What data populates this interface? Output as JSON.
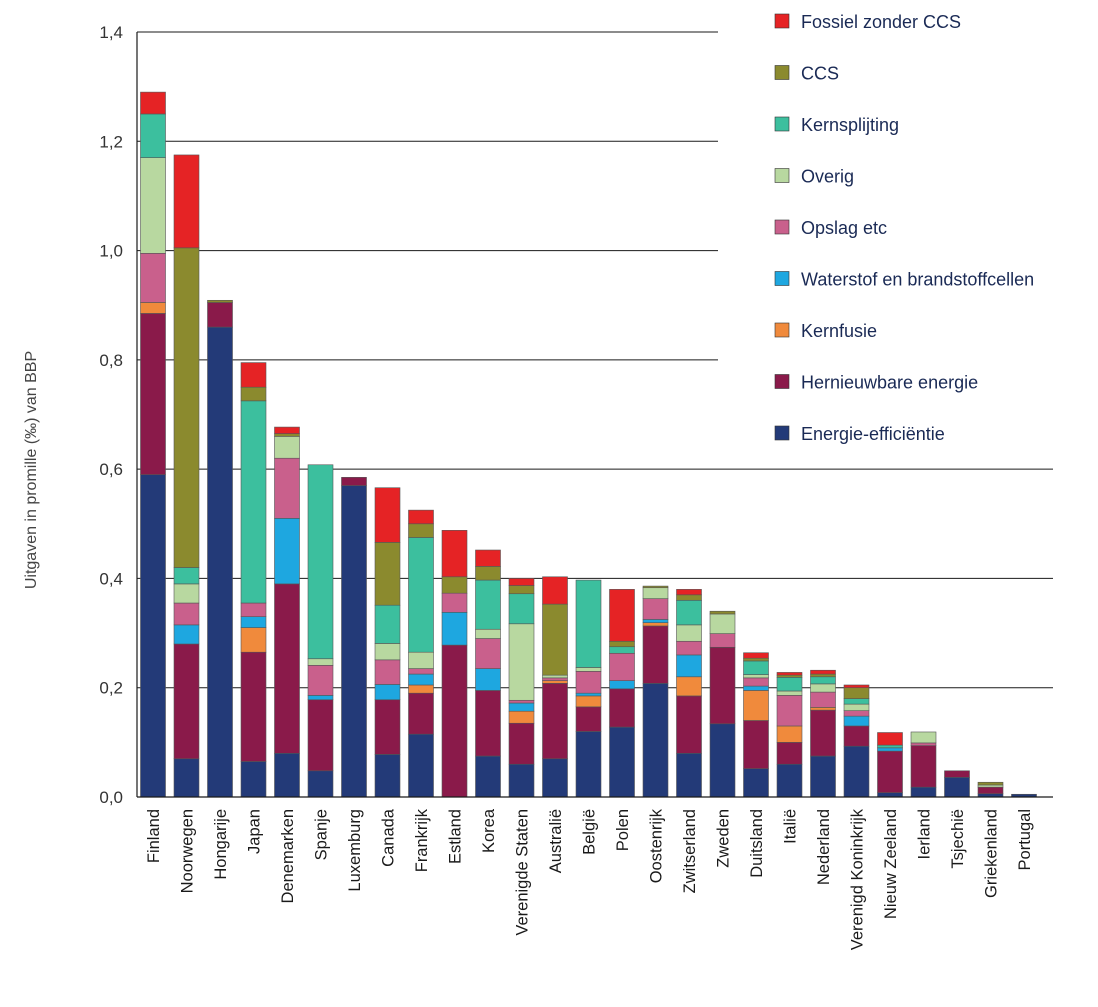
{
  "chart_data": {
    "type": "bar",
    "stacked": true,
    "ylabel": "Uitgaven in promille (‰) van BBP",
    "ylim": [
      0,
      1.4
    ],
    "yticks": [
      "0,0",
      "0,2",
      "0,4",
      "0,6",
      "0,8",
      "1,0",
      "1,2",
      "1,4"
    ],
    "ytick_values": [
      0,
      0.2,
      0.4,
      0.6,
      0.8,
      1.0,
      1.2,
      1.4
    ],
    "grid": "horizontal",
    "legend_position": "top-right",
    "categories": [
      "Finland",
      "Noorwegen",
      "Hongarije",
      "Japan",
      "Denemarken",
      "Spanje",
      "Luxemburg",
      "Canada",
      "Frankrijk",
      "Estland",
      "Korea",
      "Verenigde Staten",
      "Australië",
      "België",
      "Polen",
      "Oostenrijk",
      "Zwitserland",
      "Zweden",
      "Duitsland",
      "Italië",
      "Nederland",
      "Verenigd Koninkrijk",
      "Nieuw Zeeland",
      "Ierland",
      "Tsjechië",
      "Griekenland",
      "Portugal"
    ],
    "series": [
      {
        "name": "Energie-efficiëntie",
        "color": "#233a78",
        "values": [
          0.59,
          0.07,
          0.86,
          0.065,
          0.08,
          0.048,
          0.57,
          0.078,
          0.115,
          0.0,
          0.075,
          0.06,
          0.07,
          0.12,
          0.128,
          0.208,
          0.08,
          0.134,
          0.052,
          0.06,
          0.075,
          0.093,
          0.008,
          0.018,
          0.036,
          0.006,
          0.005
        ]
      },
      {
        "name": "Hernieuwbare energie",
        "color": "#8a1a4a",
        "values": [
          0.295,
          0.21,
          0.045,
          0.2,
          0.31,
          0.13,
          0.015,
          0.1,
          0.075,
          0.278,
          0.12,
          0.075,
          0.138,
          0.045,
          0.07,
          0.105,
          0.105,
          0.14,
          0.088,
          0.04,
          0.084,
          0.037,
          0.076,
          0.076,
          0.012,
          0.012,
          0.0
        ]
      },
      {
        "name": "Kernfusie",
        "color": "#f08a3c",
        "values": [
          0.02,
          0.0,
          0.0,
          0.045,
          0.0,
          0.0,
          0.0,
          0.0,
          0.015,
          0.0,
          0.0,
          0.022,
          0.005,
          0.02,
          0.0,
          0.006,
          0.035,
          0.0,
          0.055,
          0.03,
          0.005,
          0.0,
          0.0,
          0.0,
          0.0,
          0.0,
          0.0
        ]
      },
      {
        "name": "Waterstof en brandstoffcellen",
        "color": "#1ea7e0",
        "values": [
          0.0,
          0.035,
          0.0,
          0.02,
          0.12,
          0.008,
          0.0,
          0.028,
          0.02,
          0.06,
          0.04,
          0.015,
          0.0,
          0.005,
          0.015,
          0.006,
          0.04,
          0.0,
          0.008,
          0.0,
          0.0,
          0.018,
          0.006,
          0.0,
          0.0,
          0.0,
          0.0
        ]
      },
      {
        "name": "Opslag etc",
        "color": "#c9608c",
        "values": [
          0.09,
          0.04,
          0.0,
          0.025,
          0.11,
          0.055,
          0.0,
          0.045,
          0.01,
          0.035,
          0.055,
          0.005,
          0.005,
          0.04,
          0.05,
          0.038,
          0.025,
          0.025,
          0.015,
          0.056,
          0.028,
          0.01,
          0.0,
          0.005,
          0.0,
          0.0,
          0.0
        ]
      },
      {
        "name": "Overig",
        "color": "#b8d8a0",
        "values": [
          0.175,
          0.035,
          0.0,
          0.0,
          0.04,
          0.012,
          0.0,
          0.03,
          0.03,
          0.0,
          0.017,
          0.14,
          0.005,
          0.007,
          0.0,
          0.02,
          0.03,
          0.036,
          0.006,
          0.008,
          0.015,
          0.012,
          0.0,
          0.02,
          0.0,
          0.004,
          0.0
        ]
      },
      {
        "name": "Kernsplijting",
        "color": "#3cbf9e",
        "values": [
          0.08,
          0.03,
          0.0,
          0.37,
          0.0,
          0.355,
          0.0,
          0.07,
          0.21,
          0.0,
          0.09,
          0.055,
          0.0,
          0.16,
          0.012,
          0.0,
          0.045,
          0.0,
          0.025,
          0.025,
          0.013,
          0.01,
          0.005,
          0.0,
          0.0,
          0.0,
          0.0
        ]
      },
      {
        "name": "CCS",
        "color": "#8b8a2e",
        "values": [
          0.0,
          0.585,
          0.004,
          0.025,
          0.005,
          0.0,
          0.0,
          0.115,
          0.025,
          0.03,
          0.025,
          0.015,
          0.13,
          0.0,
          0.01,
          0.003,
          0.01,
          0.005,
          0.005,
          0.004,
          0.005,
          0.02,
          0.0,
          0.0,
          0.0,
          0.005,
          0.0
        ]
      },
      {
        "name": "Fossiel zonder CCS",
        "color": "#e52325",
        "values": [
          0.04,
          0.17,
          0.0,
          0.045,
          0.012,
          0.0,
          0.0,
          0.1,
          0.025,
          0.085,
          0.03,
          0.013,
          0.05,
          0.0,
          0.095,
          0.0,
          0.01,
          0.0,
          0.01,
          0.005,
          0.007,
          0.005,
          0.023,
          0.0,
          0.0,
          0.0,
          0.0
        ]
      }
    ]
  }
}
